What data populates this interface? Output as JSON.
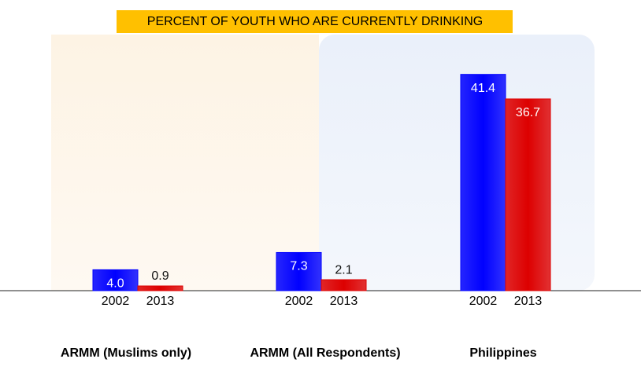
{
  "chart_data": {
    "type": "bar",
    "title": "PERCENT OF YOUTH WHO ARE CURRENTLY DRINKING",
    "categories": [
      "ARMM (Muslims only)",
      "ARMM (All Respondents)",
      "Philippines"
    ],
    "series": [
      {
        "name": "2002",
        "color": "#0000ff",
        "values": [
          4.0,
          7.3,
          41.4
        ],
        "value_labels": [
          "4.0",
          "7.3",
          "41.4"
        ]
      },
      {
        "name": "2013",
        "color": "#dd0000",
        "values": [
          0.9,
          2.1,
          36.7
        ],
        "value_labels": [
          "0.9",
          "2.1",
          "36.7"
        ]
      }
    ]
  }
}
